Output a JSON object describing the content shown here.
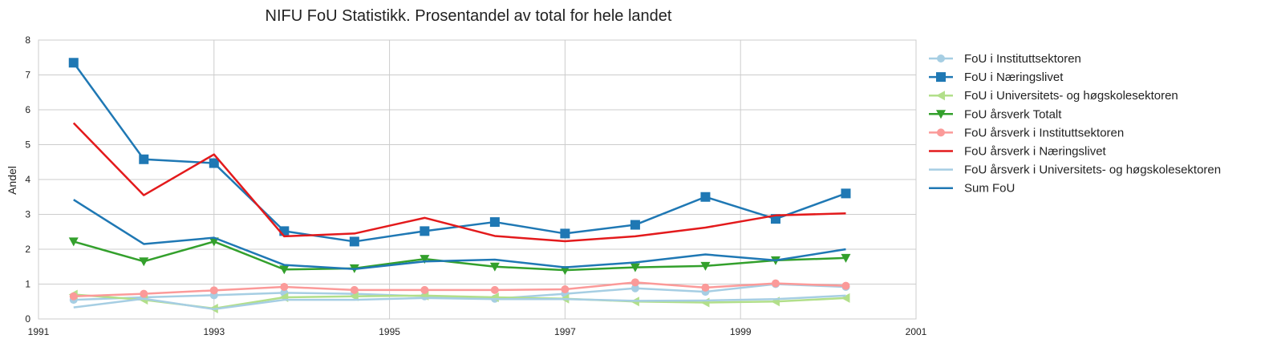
{
  "chart_data": {
    "type": "line",
    "title": "NIFU FoU Statistikk. Prosentandel av total for hele landet",
    "xlabel": "",
    "ylabel": "Andel",
    "xlim": [
      1991,
      2001
    ],
    "ylim": [
      0,
      8
    ],
    "xticks": [
      1991,
      1993,
      1995,
      1997,
      1999,
      2001
    ],
    "yticks": [
      0,
      1,
      2,
      3,
      4,
      5,
      6,
      7,
      8
    ],
    "grid": true,
    "legend": "outside-right",
    "x": [
      1991.4,
      1992.2,
      1993.0,
      1993.8,
      1994.6,
      1995.4,
      1996.2,
      1997.0,
      1997.8,
      1998.6,
      1999.4,
      2000.2
    ],
    "series": [
      {
        "name": "FoU i Instituttsektoren",
        "color": "#a6cee3",
        "marker": "circle",
        "values": [
          0.55,
          0.62,
          0.68,
          0.75,
          0.72,
          0.65,
          0.58,
          0.72,
          0.88,
          0.78,
          1.0,
          0.92
        ]
      },
      {
        "name": "FoU i Næringslivet",
        "color": "#1f78b4",
        "marker": "square",
        "values": [
          7.35,
          4.58,
          4.47,
          2.52,
          2.22,
          2.52,
          2.78,
          2.45,
          2.7,
          3.5,
          2.87,
          3.6
        ]
      },
      {
        "name": "FoU i Universitets- og høgskolesektoren",
        "color": "#b2df8a",
        "marker": "triangle-left",
        "values": [
          0.7,
          0.55,
          0.3,
          0.62,
          0.65,
          0.67,
          0.62,
          0.58,
          0.5,
          0.47,
          0.5,
          0.6
        ]
      },
      {
        "name": "FoU årsverk Totalt",
        "color": "#33a02c",
        "marker": "triangle-down",
        "values": [
          2.22,
          1.65,
          2.22,
          1.42,
          1.45,
          1.72,
          1.5,
          1.4,
          1.48,
          1.52,
          1.68,
          1.75
        ]
      },
      {
        "name": "FoU årsverk i Instituttsektoren",
        "color": "#fb9a99",
        "marker": "circle",
        "values": [
          0.65,
          0.72,
          0.82,
          0.92,
          0.83,
          0.83,
          0.83,
          0.85,
          1.05,
          0.9,
          1.02,
          0.95
        ]
      },
      {
        "name": "FoU årsverk i Næringslivet",
        "color": "#e31a1c",
        "marker": "none",
        "values": [
          5.62,
          3.55,
          4.72,
          2.37,
          2.45,
          2.9,
          2.38,
          2.23,
          2.37,
          2.62,
          2.97,
          3.03
        ]
      },
      {
        "name": "FoU årsverk i Universitets- og høgskolesektoren",
        "color": "#a6cee3",
        "marker": "none",
        "values": [
          0.33,
          0.58,
          0.28,
          0.55,
          0.55,
          0.6,
          0.57,
          0.57,
          0.52,
          0.53,
          0.57,
          0.67
        ]
      },
      {
        "name": "Sum FoU",
        "color": "#1f78b4",
        "marker": "none",
        "values": [
          3.42,
          2.15,
          2.33,
          1.55,
          1.43,
          1.65,
          1.7,
          1.48,
          1.62,
          1.85,
          1.68,
          2.0
        ]
      }
    ]
  }
}
